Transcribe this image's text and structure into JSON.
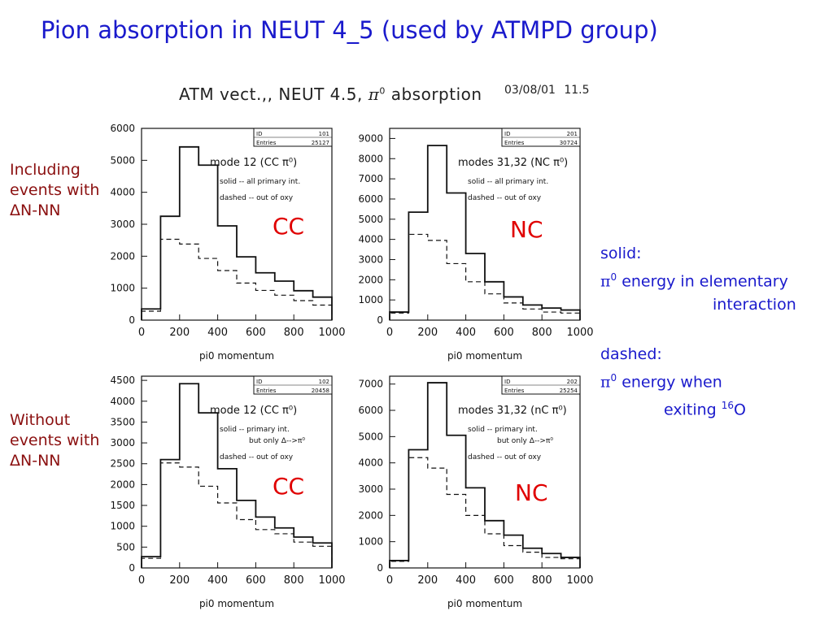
{
  "slide": {
    "title": "Pion absorption in NEUT 4_5 (used by ATMPD group)"
  },
  "figure_header": {
    "text_prefix": "ATM vect.,, NEUT 4.5,",
    "pi_symbol": "π",
    "pi_superscript": "0",
    "text_suffix": "absorption",
    "date": "03/08/01",
    "time": "11.5"
  },
  "row_labels": {
    "top": [
      "Including",
      "events with",
      "ΔN-NN"
    ],
    "bottom": [
      "Without",
      "events with",
      "ΔN-NN"
    ]
  },
  "legend": {
    "solid_title": "solid:",
    "solid_line1_symbol": "π",
    "solid_line1_sup": "0",
    "solid_line1_text": "energy in elementary",
    "solid_line2": "interaction",
    "dashed_title": "dashed:",
    "dashed_line1_symbol": "π",
    "dashed_line1_sup": "0",
    "dashed_line1_text": "energy when",
    "dashed_line2_prefix": "exiting",
    "dashed_line2_sup": "16",
    "dashed_line2_suffix": "O"
  },
  "colors": {
    "title": "#1a1acc",
    "row_label": "#8b1010",
    "tag": "#e00000",
    "legend": "#1a1acc",
    "plot_line": "#111111"
  },
  "chart_data": [
    {
      "type": "histogram",
      "id": "top-left",
      "tag": "CC",
      "xlabel": "pi0 momentum",
      "xlim": [
        0,
        1000
      ],
      "ylim": [
        0,
        6000
      ],
      "xticks": [
        0,
        200,
        400,
        600,
        800,
        1000
      ],
      "yticks": [
        0,
        1000,
        2000,
        3000,
        4000,
        5000,
        6000
      ],
      "stats": {
        "id_label": "ID",
        "id": "101",
        "entries_label": "Entries",
        "entries": "25127"
      },
      "annotations": [
        "mode 12 (CC π⁰)",
        "solid -- all primary int.",
        "dashed -- out of oxy"
      ],
      "bin_edges": [
        0,
        100,
        200,
        300,
        400,
        500,
        600,
        700,
        800,
        900,
        1000
      ],
      "series": [
        {
          "name": "solid",
          "values": [
            350,
            3250,
            5420,
            4850,
            2950,
            1980,
            1480,
            1220,
            920,
            720
          ]
        },
        {
          "name": "dashed",
          "values": [
            280,
            2530,
            2380,
            1930,
            1550,
            1160,
            930,
            780,
            610,
            470
          ]
        }
      ]
    },
    {
      "type": "histogram",
      "id": "top-right",
      "tag": "NC",
      "xlabel": "pi0 momentum",
      "xlim": [
        0,
        1000
      ],
      "ylim": [
        0,
        9500
      ],
      "xticks": [
        0,
        200,
        400,
        600,
        800,
        1000
      ],
      "yticks": [
        0,
        1000,
        2000,
        3000,
        4000,
        5000,
        6000,
        7000,
        8000,
        9000
      ],
      "stats": {
        "id_label": "ID",
        "id": "201",
        "entries_label": "Entries",
        "entries": "30724"
      },
      "annotations": [
        "modes 31,32 (NC π⁰)",
        "solid -- all primary int.",
        "dashed -- out of oxy"
      ],
      "bin_edges": [
        0,
        100,
        200,
        300,
        400,
        500,
        600,
        700,
        800,
        900,
        1000
      ],
      "series": [
        {
          "name": "solid",
          "values": [
            400,
            5350,
            8650,
            6300,
            3300,
            1900,
            1150,
            750,
            600,
            500
          ]
        },
        {
          "name": "dashed",
          "values": [
            350,
            4250,
            3950,
            2800,
            1900,
            1300,
            850,
            550,
            400,
            350
          ]
        }
      ]
    },
    {
      "type": "histogram",
      "id": "bottom-left",
      "tag": "CC",
      "xlabel": "pi0 momentum",
      "xlim": [
        0,
        1000
      ],
      "ylim": [
        0,
        4600
      ],
      "xticks": [
        0,
        200,
        400,
        600,
        800,
        1000
      ],
      "yticks": [
        0,
        500,
        1000,
        1500,
        2000,
        2500,
        3000,
        3500,
        4000,
        4500
      ],
      "stats": {
        "id_label": "ID",
        "id": "102",
        "entries_label": "Entries",
        "entries": "20458"
      },
      "annotations": [
        "mode 12 (CC π⁰)",
        "solid -- primary int.",
        "but only Δ-->π⁰",
        "dashed -- out of oxy"
      ],
      "bin_edges": [
        0,
        100,
        200,
        300,
        400,
        500,
        600,
        700,
        800,
        900,
        1000
      ],
      "series": [
        {
          "name": "solid",
          "values": [
            270,
            2600,
            4420,
            3720,
            2380,
            1620,
            1220,
            960,
            740,
            600
          ]
        },
        {
          "name": "dashed",
          "values": [
            230,
            2520,
            2420,
            1960,
            1560,
            1160,
            920,
            820,
            620,
            520
          ]
        }
      ]
    },
    {
      "type": "histogram",
      "id": "bottom-right",
      "tag": "NC",
      "xlabel": "pi0 momentum",
      "xlim": [
        0,
        1000
      ],
      "ylim": [
        0,
        7300
      ],
      "xticks": [
        0,
        200,
        400,
        600,
        800,
        1000
      ],
      "yticks": [
        0,
        1000,
        2000,
        3000,
        4000,
        5000,
        6000,
        7000
      ],
      "stats": {
        "id_label": "ID",
        "id": "202",
        "entries_label": "Entries",
        "entries": "25254"
      },
      "annotations": [
        "modes 31,32 (nC π⁰)",
        "solid -- primary int.",
        "but only Δ-->π⁰",
        "dashed -- out of oxy"
      ],
      "bin_edges": [
        0,
        100,
        200,
        300,
        400,
        500,
        600,
        700,
        800,
        900,
        1000
      ],
      "series": [
        {
          "name": "solid",
          "values": [
            280,
            4500,
            7050,
            5050,
            3050,
            1800,
            1250,
            750,
            550,
            400
          ]
        },
        {
          "name": "dashed",
          "values": [
            250,
            4200,
            3800,
            2800,
            2000,
            1300,
            850,
            600,
            400,
            350
          ]
        }
      ]
    }
  ]
}
